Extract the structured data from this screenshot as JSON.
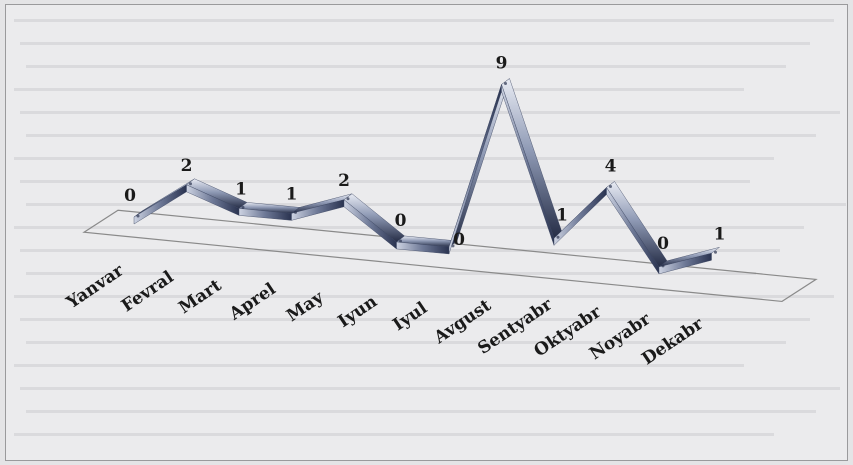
{
  "chart_data": {
    "type": "line",
    "style": "3d-ribbon",
    "categories": [
      "Yanvar",
      "Fevral",
      "Mart",
      "Aprel",
      "May",
      "Iyun",
      "Iyul",
      "Avgust",
      "Sentyabr",
      "Oktyabr",
      "Noyabr",
      "Dekabr"
    ],
    "values": [
      0,
      2,
      1,
      1,
      2,
      0,
      0,
      9,
      1,
      4,
      0,
      1
    ],
    "value_labels": [
      "0",
      "2",
      "1",
      "1",
      "2",
      "0",
      "0",
      "9",
      "1",
      "4",
      "0",
      "1"
    ],
    "ylim": [
      0,
      9
    ],
    "grid": false,
    "legend": "none",
    "colors": {
      "ribbon_light": "#dfe3ee",
      "ribbon_mid": "#7f8aa6",
      "ribbon_dark": "#2c3550",
      "floor_line": "#8a8a8a",
      "text": "#1a1a1a",
      "background": "#ebebed"
    }
  }
}
